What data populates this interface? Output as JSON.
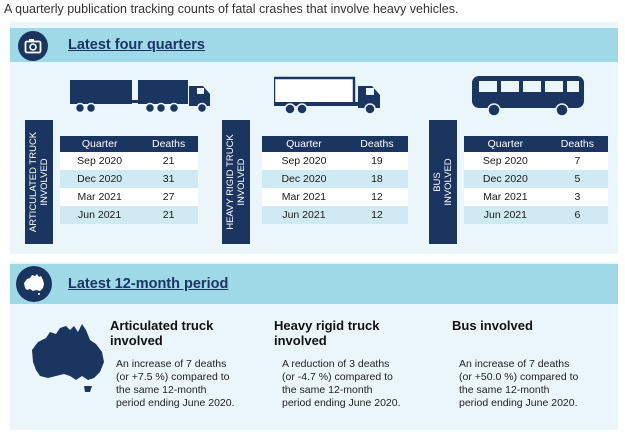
{
  "intro": "A quarterly publication tracking counts of fatal crashes that involve heavy vehicles.",
  "colors": {
    "navy": "#1b3561",
    "band": "#9fd9e8",
    "panel": "#eaf6fa",
    "row_alt": "#cfeaf3"
  },
  "top_panel": {
    "icon": "camera-icon",
    "title": "Latest four quarters",
    "column_headers": [
      "Quarter",
      "Deaths"
    ],
    "groups": [
      {
        "label": "ARTICULATED TRUCK INVOLVED",
        "label_lines": [
          "ARTICULATED TRUCK",
          "INVOLVED"
        ],
        "icon": "articulated-truck-icon",
        "rows": [
          [
            "Sep 2020",
            "21"
          ],
          [
            "Dec 2020",
            "31"
          ],
          [
            "Mar 2021",
            "27"
          ],
          [
            "Jun 2021",
            "21"
          ]
        ]
      },
      {
        "label": "HEAVY RIGID TRUCK INVOLVED",
        "label_lines": [
          "HEAVY RIGID TRUCK",
          "INVOLVED"
        ],
        "icon": "rigid-truck-icon",
        "rows": [
          [
            "Sep 2020",
            "19"
          ],
          [
            "Dec 2020",
            "18"
          ],
          [
            "Mar 2021",
            "12"
          ],
          [
            "Jun 2021",
            "12"
          ]
        ]
      },
      {
        "label": "BUS INVOLVED",
        "label_lines": [
          "BUS",
          "INVOLVED"
        ],
        "icon": "bus-icon",
        "rows": [
          [
            "Sep 2020",
            "7"
          ],
          [
            "Dec 2020",
            "5"
          ],
          [
            "Mar 2021",
            "3"
          ],
          [
            "Jun 2021",
            "6"
          ]
        ]
      }
    ]
  },
  "bottom_panel": {
    "icon": "australia-map-icon",
    "title": "Latest 12-month period",
    "cards": [
      {
        "title_lines": [
          "Articulated truck",
          "involved"
        ],
        "desc_lines": [
          "An increase of 7 deaths",
          "(or +7.5 %) compared to",
          "the same 12-month",
          "period ending June 2020."
        ]
      },
      {
        "title_lines": [
          "Heavy rigid truck",
          "involved"
        ],
        "desc_lines": [
          "A reduction of 3 deaths",
          "(or -4.7 %) compared to",
          "the same 12-month",
          "period ending June 2020."
        ]
      },
      {
        "title_lines": [
          "Bus involved"
        ],
        "desc_lines": [
          "An increase of 7 deaths",
          "(or +50.0 %) compared to",
          "the same 12-month",
          "period ending June 2020."
        ]
      }
    ]
  }
}
